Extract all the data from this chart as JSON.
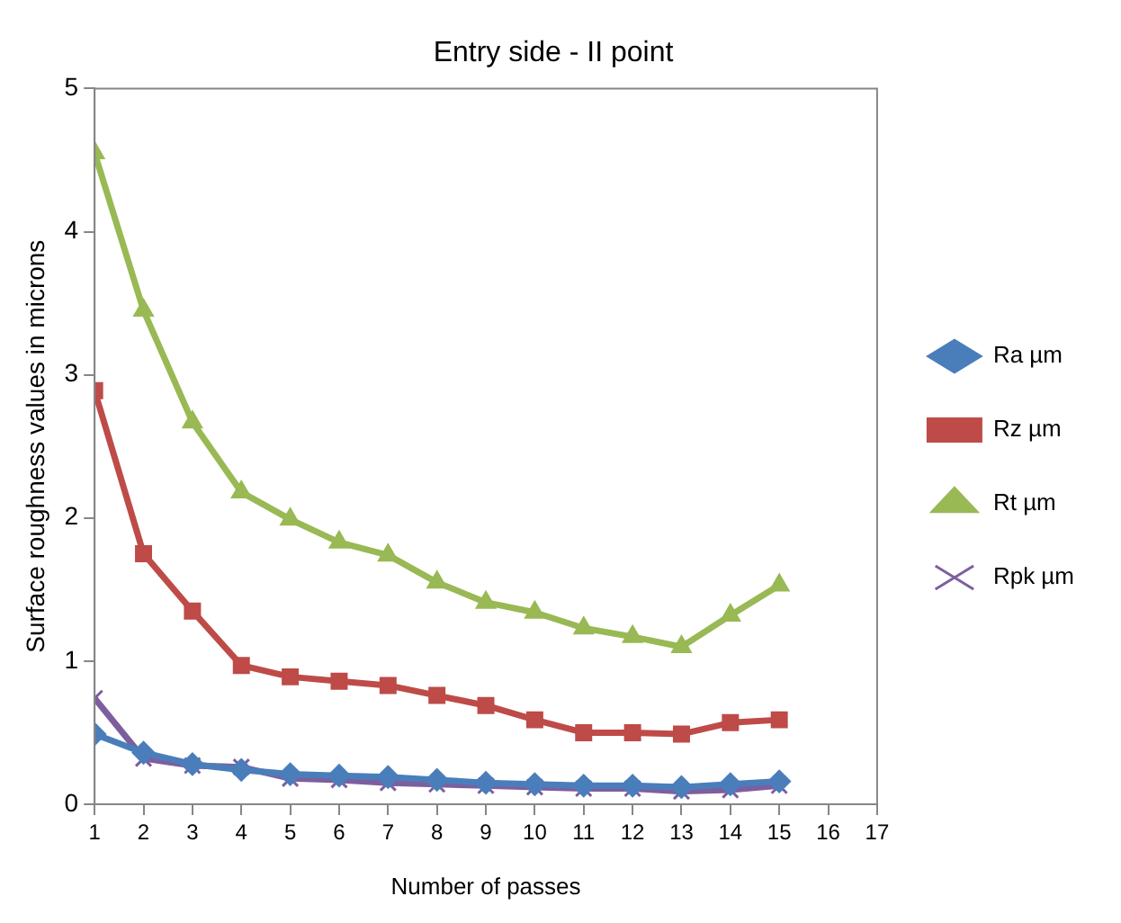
{
  "chart_data": {
    "type": "line",
    "title": "Entry side - II point",
    "xlabel": "Number of passes",
    "ylabel": "Surface roughness values in microns",
    "x": [
      1,
      2,
      3,
      4,
      5,
      6,
      7,
      8,
      9,
      10,
      11,
      12,
      13,
      14,
      15
    ],
    "xlim": [
      1,
      17
    ],
    "xticks": [
      1,
      2,
      3,
      4,
      5,
      6,
      7,
      8,
      9,
      10,
      11,
      12,
      13,
      14,
      15,
      16,
      17
    ],
    "ylim": [
      0,
      5
    ],
    "yticks": [
      0,
      1,
      2,
      3,
      4,
      5
    ],
    "grid": false,
    "legend": "right",
    "series": [
      {
        "name": "Ra µm",
        "color": "#4a7ebb",
        "marker": "diamond",
        "values": [
          0.49,
          0.36,
          0.28,
          0.24,
          0.21,
          0.2,
          0.19,
          0.17,
          0.15,
          0.14,
          0.13,
          0.13,
          0.12,
          0.14,
          0.16
        ]
      },
      {
        "name": "Rz µm",
        "color": "#be4b48",
        "marker": "square",
        "values": [
          2.89,
          1.75,
          1.35,
          0.97,
          0.89,
          0.86,
          0.83,
          0.76,
          0.69,
          0.59,
          0.5,
          0.5,
          0.49,
          0.57,
          0.59
        ]
      },
      {
        "name": "Rt µm",
        "color": "#98b954",
        "marker": "triangle",
        "values": [
          4.55,
          3.45,
          2.67,
          2.18,
          1.99,
          1.83,
          1.74,
          1.55,
          1.41,
          1.34,
          1.23,
          1.17,
          1.1,
          1.32,
          1.53
        ]
      },
      {
        "name": "Rpk µm",
        "color": "#7d5fa0",
        "marker": "cross",
        "values": [
          0.74,
          0.32,
          0.27,
          0.26,
          0.18,
          0.17,
          0.15,
          0.14,
          0.13,
          0.12,
          0.11,
          0.11,
          0.09,
          0.1,
          0.13
        ]
      }
    ]
  }
}
